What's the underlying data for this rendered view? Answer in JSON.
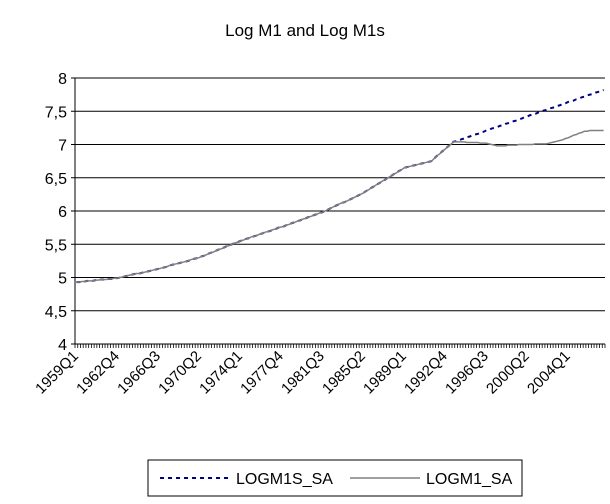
{
  "chart_data": {
    "type": "line",
    "title": "Log M1 and Log M1s",
    "categories": [
      "1959Q1",
      null,
      null,
      null,
      null,
      null,
      null,
      null,
      null,
      null,
      null,
      null,
      null,
      null,
      null,
      "1962Q4",
      null,
      null,
      null,
      null,
      null,
      null,
      null,
      null,
      null,
      null,
      null,
      null,
      null,
      null,
      "1966Q3",
      null,
      null,
      null,
      null,
      null,
      null,
      null,
      null,
      null,
      null,
      null,
      null,
      null,
      null,
      "1970Q2",
      null,
      null,
      null,
      null,
      null,
      null,
      null,
      null,
      null,
      null,
      null,
      null,
      null,
      null,
      "1974Q1",
      null,
      null,
      null,
      null,
      null,
      null,
      null,
      null,
      null,
      null,
      null,
      null,
      null,
      null,
      "1977Q4",
      null,
      null,
      null,
      null,
      null,
      null,
      null,
      null,
      null,
      null,
      null,
      null,
      null,
      null,
      "1981Q3",
      null,
      null,
      null,
      null,
      null,
      null,
      null,
      null,
      null,
      null,
      null,
      null,
      null,
      null,
      "1985Q2",
      null,
      null,
      null,
      null,
      null,
      null,
      null,
      null,
      null,
      null,
      null,
      null,
      null,
      null,
      "1989Q1",
      null,
      null,
      null,
      null,
      null,
      null,
      null,
      null,
      null,
      null,
      null,
      null,
      null,
      null,
      "1992Q4",
      null,
      null,
      null,
      null,
      null,
      null,
      null,
      null,
      null,
      null,
      null,
      null,
      null,
      null,
      "1996Q3",
      null,
      null,
      null,
      null,
      null,
      null,
      null,
      null,
      null,
      null,
      null,
      null,
      null,
      null,
      "2000Q2",
      null,
      null,
      null,
      null,
      null,
      null,
      null,
      null,
      null,
      null,
      null,
      null,
      null,
      null,
      "2004Q1",
      null,
      null,
      null,
      null,
      null,
      null,
      null,
      null,
      null,
      null,
      null,
      null,
      null
    ],
    "series": [
      {
        "name": "LOGM1S_SA",
        "color": "#000080",
        "dash": true,
        "values": [
          4.93,
          4.93,
          4.94,
          4.94,
          4.95,
          4.95,
          4.95,
          4.96,
          4.96,
          4.97,
          4.97,
          4.97,
          4.98,
          4.98,
          4.99,
          4.99,
          5.0,
          5.01,
          5.02,
          5.03,
          5.04,
          5.05,
          5.06,
          5.06,
          5.07,
          5.08,
          5.09,
          5.1,
          5.11,
          5.12,
          5.13,
          5.14,
          5.15,
          5.16,
          5.18,
          5.19,
          5.2,
          5.21,
          5.22,
          5.23,
          5.24,
          5.25,
          5.27,
          5.28,
          5.29,
          5.3,
          5.32,
          5.33,
          5.35,
          5.37,
          5.38,
          5.4,
          5.42,
          5.43,
          5.45,
          5.47,
          5.48,
          5.5,
          5.52,
          5.53,
          5.55,
          5.56,
          5.58,
          5.59,
          5.61,
          5.62,
          5.63,
          5.65,
          5.66,
          5.68,
          5.69,
          5.7,
          5.72,
          5.73,
          5.75,
          5.76,
          5.77,
          5.79,
          5.8,
          5.82,
          5.83,
          5.85,
          5.86,
          5.88,
          5.89,
          5.91,
          5.92,
          5.94,
          5.95,
          5.97,
          5.98,
          6.0,
          6.02,
          6.04,
          6.06,
          6.08,
          6.1,
          6.12,
          6.13,
          6.15,
          6.17,
          6.19,
          6.21,
          6.23,
          6.25,
          6.27,
          6.3,
          6.32,
          6.35,
          6.37,
          6.4,
          6.42,
          6.45,
          6.47,
          6.5,
          6.52,
          6.55,
          6.57,
          6.6,
          6.62,
          6.65,
          6.66,
          6.67,
          6.68,
          6.69,
          6.7,
          6.71,
          6.72,
          6.73,
          6.74,
          6.75,
          6.79,
          6.83,
          6.86,
          6.9,
          6.93,
          6.97,
          7.0,
          7.04,
          7.05,
          7.06,
          7.08,
          7.09,
          7.11,
          7.12,
          7.14,
          7.15,
          7.16,
          7.18,
          7.19,
          7.21,
          7.22,
          7.24,
          7.25,
          7.26,
          7.28,
          7.29,
          7.31,
          7.32,
          7.34,
          7.35,
          7.36,
          7.38,
          7.39,
          7.41,
          7.42,
          7.44,
          7.45,
          7.46,
          7.48,
          7.49,
          7.51,
          7.52,
          7.54,
          7.55,
          7.56,
          7.58,
          7.59,
          7.61,
          7.62,
          7.64,
          7.65,
          7.66,
          7.68,
          7.69,
          7.71,
          7.72,
          7.74,
          7.75,
          7.76,
          7.78,
          7.79,
          7.81,
          7.82
        ]
      },
      {
        "name": "LOGM1_SA",
        "color": "#808080",
        "dash": false,
        "values": [
          4.93,
          4.93,
          4.94,
          4.94,
          4.95,
          4.95,
          4.95,
          4.96,
          4.96,
          4.97,
          4.97,
          4.97,
          4.98,
          4.98,
          4.99,
          4.99,
          5.0,
          5.01,
          5.02,
          5.03,
          5.04,
          5.05,
          5.06,
          5.06,
          5.07,
          5.08,
          5.09,
          5.1,
          5.11,
          5.12,
          5.13,
          5.14,
          5.15,
          5.16,
          5.18,
          5.19,
          5.2,
          5.21,
          5.22,
          5.23,
          5.24,
          5.25,
          5.27,
          5.28,
          5.29,
          5.3,
          5.32,
          5.33,
          5.35,
          5.37,
          5.38,
          5.4,
          5.42,
          5.43,
          5.45,
          5.47,
          5.48,
          5.5,
          5.52,
          5.53,
          5.55,
          5.56,
          5.58,
          5.59,
          5.61,
          5.62,
          5.63,
          5.65,
          5.66,
          5.68,
          5.69,
          5.7,
          5.72,
          5.73,
          5.75,
          5.76,
          5.77,
          5.79,
          5.8,
          5.82,
          5.83,
          5.85,
          5.86,
          5.88,
          5.89,
          5.91,
          5.92,
          5.94,
          5.95,
          5.97,
          5.98,
          6.0,
          6.02,
          6.04,
          6.06,
          6.08,
          6.1,
          6.12,
          6.13,
          6.15,
          6.17,
          6.19,
          6.21,
          6.23,
          6.25,
          6.27,
          6.3,
          6.32,
          6.35,
          6.37,
          6.4,
          6.42,
          6.45,
          6.47,
          6.5,
          6.52,
          6.55,
          6.57,
          6.6,
          6.62,
          6.65,
          6.66,
          6.67,
          6.68,
          6.69,
          6.7,
          6.71,
          6.72,
          6.73,
          6.74,
          6.75,
          6.79,
          6.83,
          6.86,
          6.9,
          6.93,
          6.97,
          7.0,
          7.04,
          7.04,
          7.04,
          7.04,
          7.04,
          7.03,
          7.03,
          7.03,
          7.03,
          7.03,
          7.02,
          7.02,
          7.02,
          7.01,
          7.0,
          6.99,
          6.98,
          6.98,
          6.98,
          6.98,
          6.99,
          6.99,
          6.99,
          6.99,
          7.0,
          7.0,
          7.0,
          7.0,
          7.0,
          7.0,
          7.01,
          7.01,
          7.01,
          7.01,
          7.01,
          7.02,
          7.03,
          7.04,
          7.05,
          7.06,
          7.07,
          7.09,
          7.1,
          7.12,
          7.14,
          7.15,
          7.17,
          7.18,
          7.2,
          7.2,
          7.21,
          7.21,
          7.21,
          7.21,
          7.21,
          7.21
        ]
      }
    ],
    "ylim": [
      4,
      8
    ],
    "yticks": [
      4,
      {
        "value": 4.5,
        "label": "4,5"
      },
      5,
      {
        "value": 5.5,
        "label": "5,5"
      },
      6,
      {
        "value": 6.5,
        "label": "6,5"
      },
      7,
      {
        "value": 7.5,
        "label": "7,5"
      },
      8
    ],
    "grid": true,
    "legend": "bottom"
  }
}
